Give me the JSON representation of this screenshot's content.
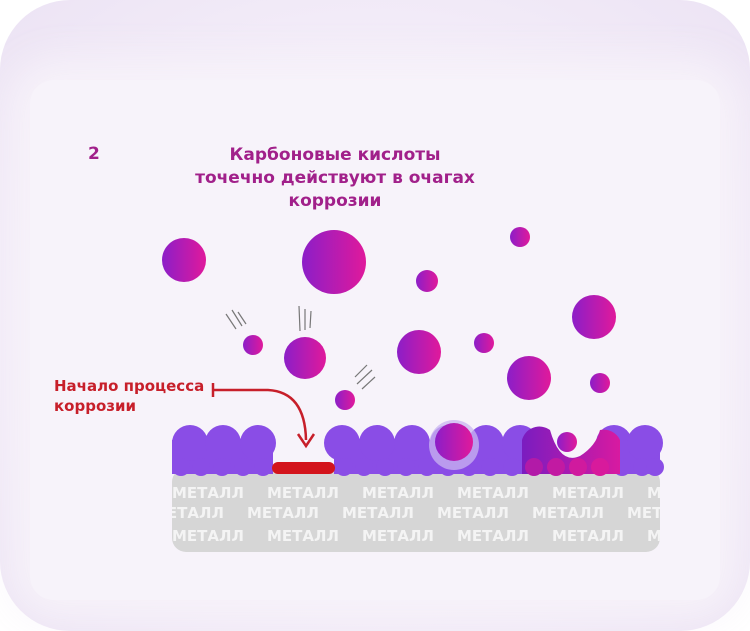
{
  "step_number": "2",
  "title_lines": [
    "Карбоновые кислоты",
    "точечно действуют в очагах",
    "коррозии"
  ],
  "annotation_lines": [
    "Начало процесса",
    "коррозии"
  ],
  "metal_word": "МЕТАЛЛ",
  "colors": {
    "molecule_start": "#8c1ec8",
    "molecule_end": "#e0199b",
    "coating": "#8a4de6",
    "metal": "#d6d6d6",
    "corrosion": "#d3141c",
    "text_magenta": "#a1208a"
  }
}
